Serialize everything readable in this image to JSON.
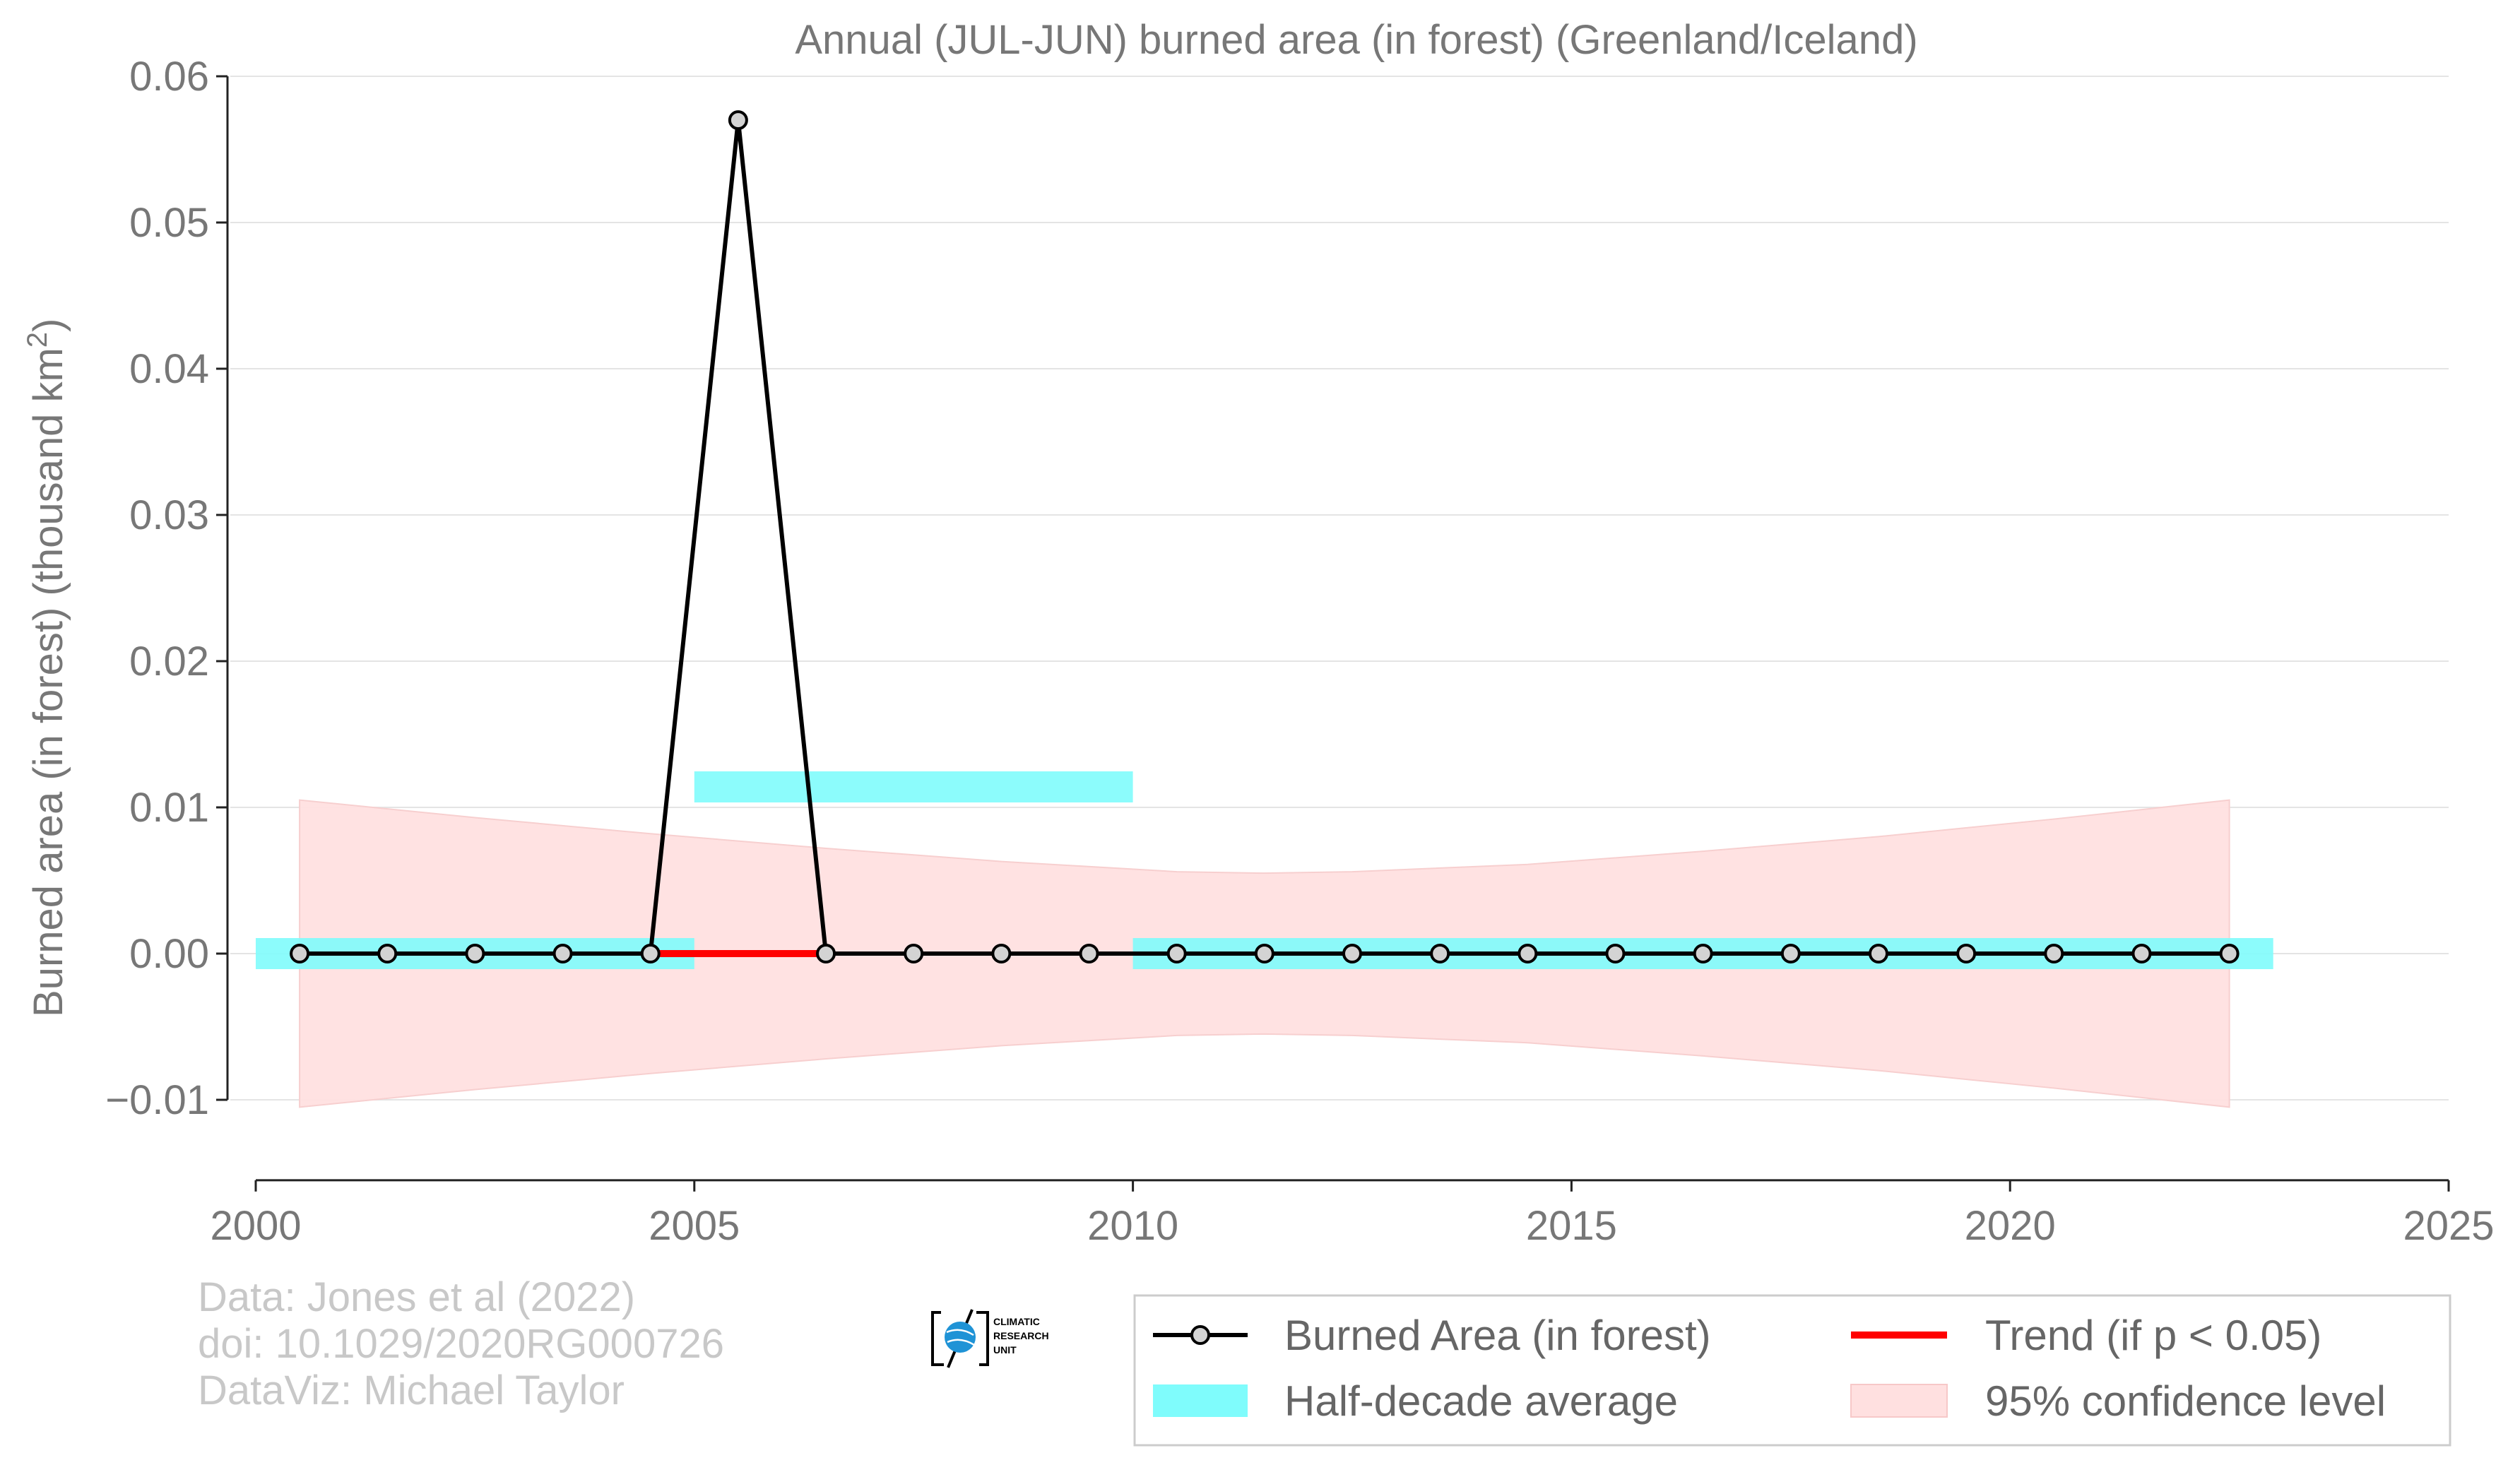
{
  "chart_data": {
    "type": "line",
    "title": "Annual (JUL-JUN) burned area (in forest) (Greenland/Iceland)",
    "ylabel": "Burned area (in forest) (thousand km",
    "ylabel_sup": "2",
    "ylabel_close": ")",
    "xlabel": "",
    "xlim": [
      2000,
      2025
    ],
    "ylim": [
      -0.0155,
      0.06
    ],
    "x_ticks": [
      2000,
      2005,
      2010,
      2015,
      2020,
      2025
    ],
    "y_ticks": [
      -0.01,
      0.0,
      0.01,
      0.02,
      0.03,
      0.04,
      0.05,
      0.06
    ],
    "y_tick_labels": [
      "−0.01",
      "0.00",
      "0.01",
      "0.02",
      "0.03",
      "0.04",
      "0.05",
      "0.06"
    ],
    "grid": "horizontal",
    "legend_position": "bottom-right",
    "series": [
      {
        "name": "Burned Area (in forest)",
        "color": "#000000",
        "x": [
          2000.5,
          2001.5,
          2002.5,
          2003.5,
          2004.5,
          2005.5,
          2006.5,
          2007.5,
          2008.5,
          2009.5,
          2010.5,
          2011.5,
          2012.5,
          2013.5,
          2014.5,
          2015.5,
          2016.5,
          2017.5,
          2018.5,
          2019.5,
          2020.5,
          2021.5,
          2022.5
        ],
        "y": [
          0,
          0,
          0,
          0,
          0,
          0.057,
          0,
          0,
          0,
          0,
          0,
          0,
          0,
          0,
          0,
          0,
          0,
          0,
          0,
          0,
          0,
          0,
          0
        ]
      },
      {
        "name": "Half-decade average",
        "color": "#7ffcfc",
        "segments": [
          {
            "x0": 2000,
            "x1": 2005,
            "y": 0.0
          },
          {
            "x0": 2005,
            "x1": 2010,
            "y": 0.0114
          },
          {
            "x0": 2010,
            "x1": 2023,
            "y": 0.0
          }
        ]
      },
      {
        "name": "Trend (if p < 0.05)",
        "color": "#ff0000",
        "x": [
          2004.5,
          2006.5
        ],
        "y": [
          0,
          0
        ]
      },
      {
        "name": "95% confidence level",
        "color": "#ffe0e0",
        "x": [
          2000.5,
          2002.5,
          2004.5,
          2006.5,
          2008.5,
          2010.5,
          2011.5,
          2012.5,
          2014.5,
          2016.5,
          2018.5,
          2020.5,
          2022.5
        ],
        "upper": [
          0.0105,
          0.0093,
          0.0082,
          0.0072,
          0.0063,
          0.0056,
          0.0055,
          0.0056,
          0.0061,
          0.007,
          0.008,
          0.0092,
          0.0105
        ],
        "lower": [
          -0.0105,
          -0.0093,
          -0.0082,
          -0.0072,
          -0.0063,
          -0.0056,
          -0.0055,
          -0.0056,
          -0.0061,
          -0.007,
          -0.008,
          -0.0092,
          -0.0105
        ]
      }
    ],
    "legend": [
      {
        "label": "Burned Area (in forest)",
        "kind": "line-marker"
      },
      {
        "label": "Trend (if p < 0.05)",
        "kind": "line-red"
      },
      {
        "label": "Half-decade average",
        "kind": "patch-cyan"
      },
      {
        "label": "95% confidence level",
        "kind": "patch-pink"
      }
    ]
  },
  "credits": {
    "line1": "Data: Jones et al (2022)",
    "line2": "doi: 10.1029/2020RG000726",
    "line3": "DataViz: Michael Taylor"
  },
  "logo": {
    "line1": "CLIMATIC",
    "line2": "RESEARCH",
    "line3": "UNIT"
  }
}
